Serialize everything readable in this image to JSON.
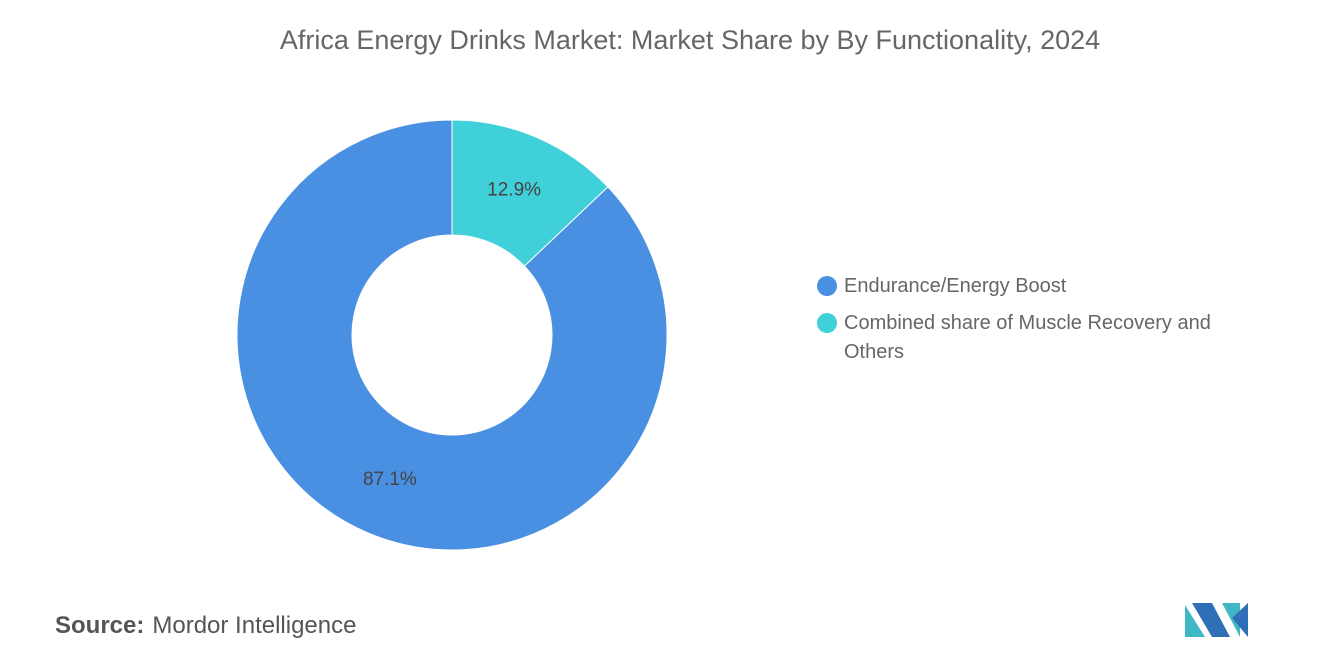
{
  "chart_data": {
    "type": "pie",
    "donut": true,
    "title": "Africa Energy Drinks Market: Market Share by By Functionality, 2024",
    "categories": [
      "Endurance/Energy Boost",
      "Combined share of Muscle Recovery and Others"
    ],
    "values": [
      87.1,
      12.9
    ],
    "value_labels": [
      "87.1%",
      "12.9%"
    ],
    "colors": [
      "#4a90e2",
      "#40d0d9"
    ],
    "legend": "right"
  },
  "source": {
    "label": "Source:",
    "name": "Mordor Intelligence"
  }
}
